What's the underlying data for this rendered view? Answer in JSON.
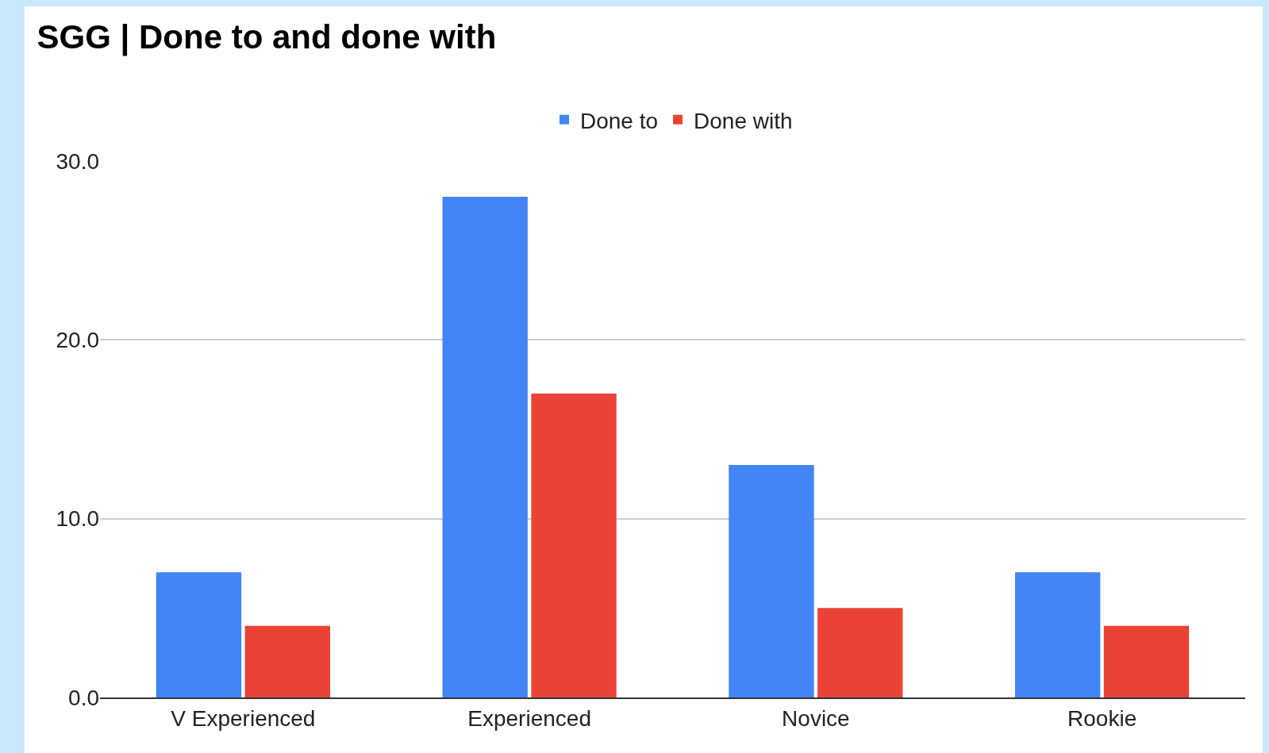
{
  "chart_data": {
    "type": "bar",
    "title": "SGG | Done to and done with",
    "categories": [
      "V Experienced",
      "Experienced",
      "Novice",
      "Rookie"
    ],
    "series": [
      {
        "name": "Done to",
        "color": "#4285f4",
        "values": [
          7,
          28,
          13,
          7
        ]
      },
      {
        "name": "Done with",
        "color": "#ea4335",
        "values": [
          4,
          17,
          5,
          4
        ]
      }
    ],
    "ylim": [
      0,
      30
    ],
    "yticks": [
      {
        "value": 0,
        "label": "0.0"
      },
      {
        "value": 10,
        "label": "10.0"
      },
      {
        "value": 20,
        "label": "20.0"
      },
      {
        "value": 30,
        "label": "30.0"
      }
    ],
    "grid": "y",
    "legend": "top"
  }
}
